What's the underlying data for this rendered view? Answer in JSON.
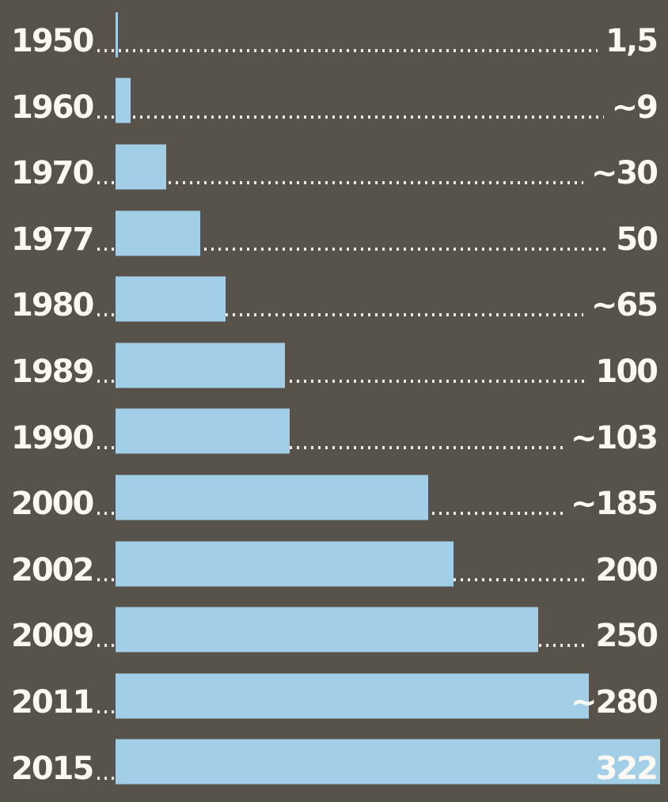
{
  "chart_data": {
    "type": "bar",
    "orientation": "horizontal",
    "categories": [
      "1950",
      "1960",
      "1970",
      "1977",
      "1980",
      "1989",
      "1990",
      "2000",
      "2002",
      "2009",
      "2011",
      "2015"
    ],
    "values": [
      1.5,
      9,
      30,
      50,
      65,
      100,
      103,
      185,
      200,
      250,
      280,
      322
    ],
    "value_labels": [
      "1,5",
      "~9",
      "~30",
      "50",
      "~65",
      "100",
      "~103",
      "~185",
      "200",
      "250",
      "~280",
      "322"
    ],
    "xlim": [
      0,
      322
    ],
    "grid": false,
    "legend": false,
    "leader_dots": true,
    "colors": {
      "background": "#57534a",
      "bar": "#a3cee8",
      "text": "#fbf8f1",
      "dots": "#eeeae1"
    }
  }
}
